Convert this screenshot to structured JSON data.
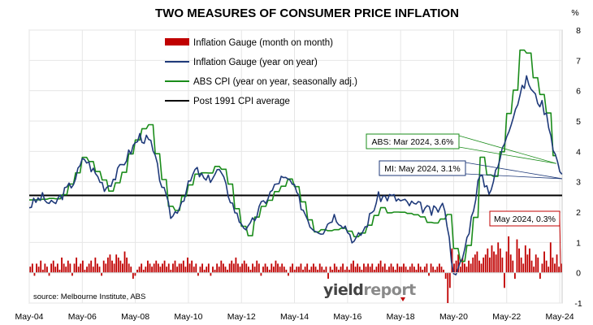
{
  "chart_data": {
    "type": "line",
    "title": "TWO MEASURES OF CONSUMER PRICE INFLATION",
    "y_unit": "%",
    "ylim": [
      -1,
      8
    ],
    "y_ticks": [
      "-1",
      "0",
      "1",
      "2",
      "3",
      "4",
      "5",
      "6",
      "7",
      "8"
    ],
    "x_tick_labels": [
      "May-04",
      "May-06",
      "May-08",
      "May-10",
      "May-12",
      "May-14",
      "May-16",
      "May-18",
      "May-20",
      "May-22",
      "May-24"
    ],
    "x_tick_years": [
      2004.33,
      2006.33,
      2008.33,
      2010.33,
      2012.33,
      2014.33,
      2016.33,
      2018.33,
      2020.33,
      2022.33,
      2024.33
    ],
    "xlim": [
      2004.33,
      2024.42
    ],
    "legend": [
      {
        "key": "mom",
        "label": "Inflation Gauge (month on month)",
        "color": "#c00000",
        "kind": "bar"
      },
      {
        "key": "yoy",
        "label": "Inflation Gauge (year on year)",
        "color": "#1f3a7a",
        "kind": "line"
      },
      {
        "key": "abs",
        "label": "ABS CPI (year on year, seasonally adj.)",
        "color": "#1a8c1a",
        "kind": "line"
      },
      {
        "key": "avg",
        "label": "Post 1991 CPI average",
        "color": "#000000",
        "kind": "line"
      }
    ],
    "average_value": 2.55,
    "series": {
      "yoy_anchors": [
        [
          2004.33,
          2.2
        ],
        [
          2004.8,
          2.5
        ],
        [
          2005.2,
          2.2
        ],
        [
          2005.6,
          2.6
        ],
        [
          2006.0,
          3.0
        ],
        [
          2006.4,
          3.8
        ],
        [
          2006.8,
          3.3
        ],
        [
          2007.2,
          2.8
        ],
        [
          2007.6,
          3.2
        ],
        [
          2008.0,
          3.8
        ],
        [
          2008.5,
          4.5
        ],
        [
          2008.9,
          4.3
        ],
        [
          2009.3,
          3.0
        ],
        [
          2009.7,
          1.8
        ],
        [
          2010.1,
          2.4
        ],
        [
          2010.6,
          3.4
        ],
        [
          2011.0,
          3.0
        ],
        [
          2011.5,
          3.4
        ],
        [
          2011.8,
          2.7
        ],
        [
          2012.2,
          1.8
        ],
        [
          2012.6,
          1.4
        ],
        [
          2013.0,
          2.1
        ],
        [
          2013.4,
          2.6
        ],
        [
          2013.8,
          3.1
        ],
        [
          2014.2,
          3.0
        ],
        [
          2014.6,
          2.2
        ],
        [
          2015.0,
          1.5
        ],
        [
          2015.4,
          1.4
        ],
        [
          2015.8,
          1.9
        ],
        [
          2016.2,
          1.6
        ],
        [
          2016.6,
          1.0
        ],
        [
          2017.0,
          1.5
        ],
        [
          2017.5,
          2.5
        ],
        [
          2018.0,
          2.5
        ],
        [
          2018.5,
          2.3
        ],
        [
          2019.0,
          2.2
        ],
        [
          2019.5,
          2.0
        ],
        [
          2020.0,
          2.2
        ],
        [
          2020.25,
          0.5
        ],
        [
          2020.4,
          -0.2
        ],
        [
          2020.7,
          0.6
        ],
        [
          2021.0,
          1.8
        ],
        [
          2021.3,
          3.2
        ],
        [
          2021.7,
          2.7
        ],
        [
          2022.0,
          3.5
        ],
        [
          2022.3,
          4.5
        ],
        [
          2022.6,
          5.3
        ],
        [
          2022.9,
          6.0
        ],
        [
          2023.1,
          6.4
        ],
        [
          2023.4,
          5.8
        ],
        [
          2023.7,
          5.5
        ],
        [
          2023.9,
          5.0
        ],
        [
          2024.1,
          4.1
        ],
        [
          2024.42,
          3.1
        ]
      ],
      "abs_anchors": [
        [
          2004.33,
          2.4
        ],
        [
          2004.9,
          2.5
        ],
        [
          2005.4,
          2.4
        ],
        [
          2005.9,
          3.0
        ],
        [
          2006.4,
          4.0
        ],
        [
          2006.9,
          3.2
        ],
        [
          2007.4,
          2.6
        ],
        [
          2007.9,
          3.5
        ],
        [
          2008.4,
          4.5
        ],
        [
          2008.8,
          5.0
        ],
        [
          2009.3,
          3.1
        ],
        [
          2009.7,
          1.8
        ],
        [
          2010.2,
          2.8
        ],
        [
          2010.6,
          3.2
        ],
        [
          2011.0,
          3.3
        ],
        [
          2011.4,
          3.6
        ],
        [
          2011.8,
          3.1
        ],
        [
          2012.2,
          1.7
        ],
        [
          2012.6,
          1.2
        ],
        [
          2013.0,
          2.2
        ],
        [
          2013.4,
          2.4
        ],
        [
          2013.8,
          2.9
        ],
        [
          2014.2,
          3.1
        ],
        [
          2014.6,
          2.3
        ],
        [
          2015.0,
          1.4
        ],
        [
          2015.4,
          1.4
        ],
        [
          2015.8,
          1.5
        ],
        [
          2016.2,
          1.4
        ],
        [
          2016.6,
          1.2
        ],
        [
          2017.0,
          1.5
        ],
        [
          2017.5,
          2.1
        ],
        [
          2018.0,
          2.0
        ],
        [
          2018.5,
          2.0
        ],
        [
          2019.0,
          1.8
        ],
        [
          2019.5,
          1.6
        ],
        [
          2020.0,
          1.8
        ],
        [
          2020.25,
          2.2
        ],
        [
          2020.4,
          -0.3
        ],
        [
          2020.7,
          0.7
        ],
        [
          2021.0,
          1.1
        ],
        [
          2021.3,
          3.8
        ],
        [
          2021.7,
          3.0
        ],
        [
          2022.0,
          3.5
        ],
        [
          2022.3,
          5.1
        ],
        [
          2022.6,
          6.1
        ],
        [
          2022.8,
          7.3
        ],
        [
          2022.95,
          7.8
        ],
        [
          2023.2,
          6.8
        ],
        [
          2023.5,
          6.0
        ],
        [
          2023.8,
          5.4
        ],
        [
          2024.0,
          4.1
        ],
        [
          2024.2,
          3.6
        ]
      ],
      "mom_values": [
        0.2,
        0.3,
        -0.1,
        0.3,
        0.2,
        0.4,
        0.1,
        0.3,
        0.2,
        -0.1,
        0.3,
        0.4,
        0.2,
        0.3,
        0.1,
        0.5,
        0.3,
        0.2,
        0.4,
        0.3,
        -0.1,
        0.3,
        0.5,
        0.2,
        0.3,
        0.4,
        0.1,
        0.2,
        0.3,
        0.4,
        0.2,
        0.5,
        0.3,
        0.2,
        -0.1,
        0.4,
        0.3,
        0.5,
        0.6,
        0.4,
        0.3,
        0.6,
        0.5,
        0.4,
        0.3,
        0.7,
        0.5,
        0.3,
        0.2,
        -0.2,
        -0.1,
        0.1,
        0.2,
        0.3,
        0.1,
        0.2,
        0.4,
        0.3,
        0.2,
        0.3,
        0.4,
        0.3,
        0.2,
        0.3,
        0.4,
        0.2,
        0.3,
        0.1,
        0.3,
        0.4,
        0.2,
        0.3,
        0.3,
        0.4,
        0.2,
        0.5,
        0.3,
        0.4,
        0.2,
        0.3,
        -0.1,
        0.2,
        0.3,
        0.1,
        0.2,
        0.3,
        -0.1,
        0.2,
        0.1,
        0.3,
        0.2,
        0.4,
        0.3,
        0.2,
        0.1,
        0.3,
        0.4,
        0.3,
        0.5,
        0.3,
        0.2,
        0.3,
        0.4,
        0.3,
        0.2,
        0.1,
        0.3,
        0.2,
        0.4,
        0.3,
        -0.1,
        0.2,
        0.3,
        0.2,
        0.1,
        0.3,
        0.2,
        0.4,
        0.3,
        0.2,
        0.3,
        0.2,
        0.1,
        -0.1,
        0.2,
        0.3,
        0.1,
        0.2,
        0.2,
        0.3,
        0.1,
        0.2,
        0.3,
        0.1,
        0.2,
        0.3,
        0.2,
        0.1,
        0.3,
        0.2,
        0.1,
        0.2,
        -0.2,
        0.2,
        0.1,
        0.3,
        0.2,
        0.1,
        0.2,
        0.3,
        0.1,
        0.2,
        0.1,
        0.3,
        0.4,
        0.2,
        0.3,
        0.2,
        0.1,
        0.3,
        0.2,
        0.3,
        0.2,
        0.3,
        0.1,
        0.2,
        0.3,
        0.4,
        0.2,
        0.3,
        0.1,
        0.2,
        0.3,
        0.2,
        0.1,
        0.3,
        0.2,
        0.2,
        0.3,
        0.2,
        0.1,
        0.2,
        0.3,
        0.2,
        0.1,
        0.3,
        0.2,
        0.1,
        0.2,
        0.3,
        -0.1,
        0.3,
        0.2,
        0.1,
        0.2,
        0.3,
        0.2,
        0.1,
        -0.2,
        -1.0,
        -0.5,
        0.8,
        0.3,
        0.4,
        0.6,
        0.2,
        0.5,
        0.3,
        0.2,
        0.4,
        0.3,
        0.5,
        0.6,
        0.7,
        0.4,
        0.3,
        0.5,
        0.6,
        0.8,
        0.5,
        0.9,
        0.7,
        0.6,
        1.0,
        0.8,
        0.5,
        -0.5,
        0.7,
        1.2,
        0.6,
        0.4,
        -0.2,
        1.1,
        0.8,
        0.5,
        0.3,
        0.9,
        0.6,
        0.8,
        0.4,
        0.2,
        0.6,
        0.5,
        -0.2,
        0.3,
        0.7,
        0.4,
        0.2,
        1.0,
        0.5,
        0.3,
        0.6,
        0.2,
        0.3
      ]
    },
    "callouts": [
      {
        "key": "abs",
        "text": "ABS: Mar 2024, 3.6%",
        "color": "#1a8c1a"
      },
      {
        "key": "yoy",
        "text": "MI: May 2024, 3.1%",
        "color": "#1f3a7a"
      },
      {
        "key": "mom",
        "text": "May 2024, 0.3%",
        "color": "#c00000"
      }
    ],
    "source": "source: Melbourne Institute, ABS",
    "watermark": {
      "part1": "yield",
      "part2": "report"
    }
  }
}
